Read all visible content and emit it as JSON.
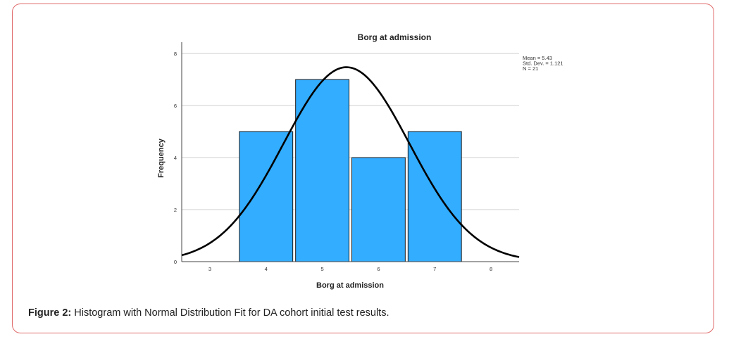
{
  "figure": {
    "caption_label": "Figure 2:",
    "caption_text": " Histogram with Normal Distribution Fit for DA cohort initial test results."
  },
  "chart_data": {
    "type": "bar",
    "title": "Borg at admission",
    "xlabel": "Borg at admission",
    "ylabel": "Frequency",
    "categories": [
      "4",
      "5",
      "6",
      "7"
    ],
    "values": [
      5,
      7,
      4,
      5
    ],
    "xlim": [
      2.5,
      8.5
    ],
    "ylim": [
      0,
      8.3
    ],
    "x_ticks": [
      "3",
      "4",
      "5",
      "6",
      "7",
      "8"
    ],
    "y_ticks": [
      "0",
      "2",
      "4",
      "6",
      "8"
    ],
    "grid": true,
    "bar_color": "#33adff",
    "curve_color": "#000000",
    "normal_fit": {
      "mean": 5.43,
      "sd": 1.121,
      "n": 21
    },
    "legend": {
      "placement": "top-right",
      "lines": [
        "Mean = 5.43",
        "Std. Dev. = 1.121",
        "N = 21"
      ]
    }
  }
}
